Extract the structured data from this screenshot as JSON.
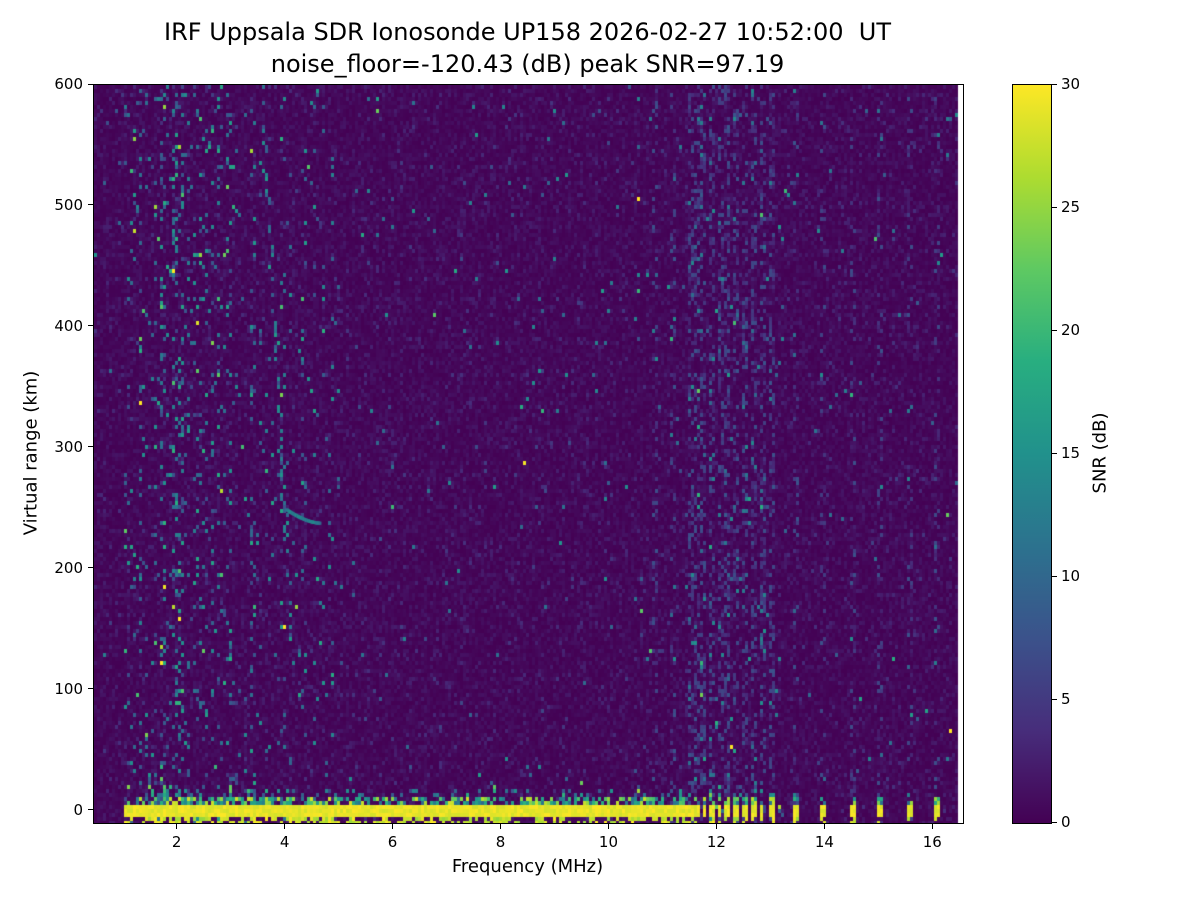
{
  "chart_data": {
    "type": "heatmap",
    "title": "IRF Uppsala SDR Ionosonde UP158 2026-02-27 10:52:00  UT",
    "subtitle": "noise_floor=-120.43 (dB) peak SNR=97.19",
    "xlabel": "Frequency (MHz)",
    "ylabel": "Virtual range (km)",
    "station": "UP158",
    "timestamp_ut": "2026-02-27 10:52:00",
    "noise_floor_db": -120.43,
    "peak_snr_db": 97.19,
    "x_range_mhz": [
      0.45,
      16.55
    ],
    "y_range_km": [
      -10,
      600
    ],
    "x_ticks": [
      2,
      4,
      6,
      8,
      10,
      12,
      14,
      16
    ],
    "y_ticks": [
      0,
      100,
      200,
      300,
      400,
      500,
      600
    ],
    "grid": false,
    "colorbar": {
      "label": "SNR (dB)",
      "min": 0,
      "max": 30,
      "ticks": [
        0,
        5,
        10,
        15,
        20,
        25,
        30
      ],
      "colormap": "viridis",
      "colormap_stops": [
        "#440154",
        "#472d7b",
        "#3b528b",
        "#2c728e",
        "#21918c",
        "#28ae80",
        "#5ec962",
        "#addc30",
        "#fde725"
      ]
    },
    "features": {
      "background_noise_mean_db": 0.75,
      "data_freq_max_mhz": 16.45,
      "ground_pulse": {
        "center_km": 0,
        "half_width_km": 6.5,
        "freq_start_mhz": 1.0,
        "freq_end_mhz": 11.5,
        "snr_db": 30
      },
      "speckle_bands": [
        {
          "freq_mhz": [
            1.0,
            2.1
          ],
          "density": 0.055
        },
        {
          "freq_mhz": [
            2.1,
            3.6
          ],
          "density": 0.035
        },
        {
          "freq_mhz": [
            3.6,
            5.0
          ],
          "density": 0.022
        },
        {
          "freq_mhz": [
            5.0,
            11.4
          ],
          "density": 0.007
        },
        {
          "freq_mhz": [
            11.4,
            13.25
          ],
          "density": 0.024
        }
      ],
      "rfi_stripes_strong_mhz": [
        11.5,
        11.62,
        11.76,
        11.9,
        12.04,
        12.18,
        12.34,
        12.5,
        12.66,
        12.82,
        13.0
      ],
      "rfi_stripes_weak_mhz": [
        10.85,
        11.15,
        13.45,
        13.97,
        14.5,
        15.03,
        15.55,
        16.08
      ],
      "intermittent_ground_mhz": [
        11.5,
        11.62,
        11.76,
        11.9,
        12.04,
        12.18,
        12.34,
        12.5,
        12.66,
        12.82,
        13.0,
        13.45,
        13.97,
        14.5,
        15.03,
        15.55,
        16.08
      ],
      "diagonal_trace": {
        "freq_mhz": [
          3.55,
          4.15
        ],
        "range_km": [
          600,
          110
        ],
        "snr_db": 12
      },
      "echo_trace": {
        "freq_mhz": [
          4.0,
          4.62
        ],
        "range_km": [
          250,
          239
        ],
        "snr_db": 12
      }
    }
  }
}
